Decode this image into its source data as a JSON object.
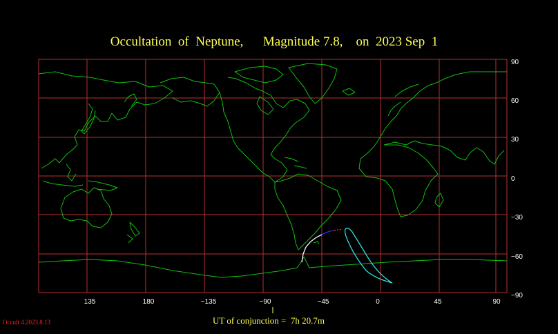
{
  "title": "Occultation  of  Neptune,      Magnitude 7.8,    on  2023 Sep  1",
  "footer": "UT of conjunction =  7h 20.7m",
  "version": "Occult 4.2023.8.13",
  "colors": {
    "background": "#000000",
    "grid": "#b83030",
    "coastline": "#10c010",
    "title": "#ffff55",
    "labels": "#ffffff",
    "daytime_track": "#ffffff",
    "twilight_track": "#2030ff",
    "limit_track": "#ff3030",
    "graze_curve": "#30e0e0"
  },
  "map": {
    "projection": "equirectangular",
    "center_longitude": -90,
    "longitude_ticks": [
      "135",
      "180",
      "−135",
      "−90",
      "−45",
      "0",
      "45",
      "90"
    ],
    "latitude_ticks": [
      "90",
      "60",
      "30",
      "0",
      "−30",
      "−60",
      "−90"
    ]
  }
}
